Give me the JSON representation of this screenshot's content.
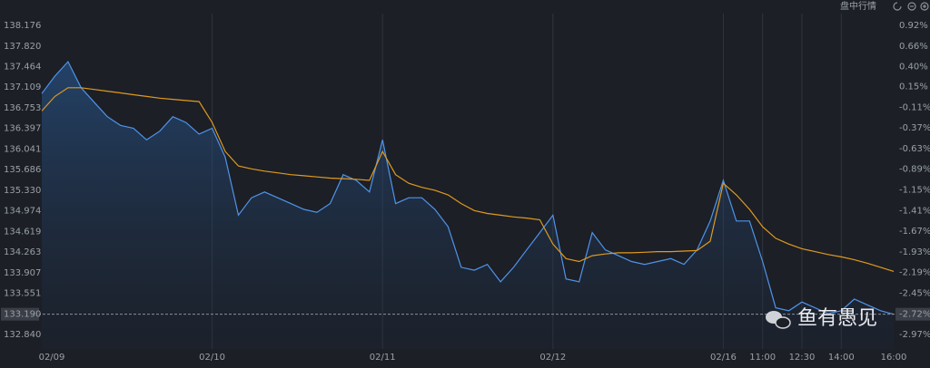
{
  "header": {
    "mode_label": "盘中行情"
  },
  "watermark": "鱼有愚见",
  "chart_data": {
    "type": "line",
    "categories": [
      "02/09",
      null,
      null,
      null,
      null,
      null,
      null,
      null,
      null,
      null,
      null,
      null,
      null,
      "02/10",
      null,
      null,
      null,
      null,
      null,
      null,
      null,
      null,
      null,
      null,
      null,
      null,
      "02/11",
      null,
      null,
      null,
      null,
      null,
      null,
      null,
      null,
      null,
      null,
      null,
      null,
      "02/12",
      null,
      null,
      null,
      null,
      null,
      null,
      null,
      null,
      null,
      null,
      null,
      null,
      "02/16",
      null,
      null,
      "11:00",
      null,
      null,
      "12:30",
      null,
      null,
      "14:00",
      null,
      null,
      null,
      "16:00"
    ],
    "series": [
      {
        "color": "#4f94ea",
        "area": true,
        "values": [
          137.0,
          137.3,
          137.55,
          137.1,
          136.85,
          136.6,
          136.45,
          136.4,
          136.2,
          136.35,
          136.6,
          136.5,
          136.3,
          136.4,
          135.9,
          134.9,
          135.2,
          135.3,
          135.2,
          135.1,
          135.0,
          134.95,
          135.1,
          135.6,
          135.5,
          135.3,
          136.2,
          135.1,
          135.2,
          135.2,
          135.0,
          134.7,
          134.0,
          133.95,
          134.05,
          133.75,
          134.0,
          134.3,
          134.6,
          134.9,
          133.8,
          133.75,
          134.6,
          134.3,
          134.2,
          134.1,
          134.05,
          134.1,
          134.15,
          134.05,
          134.3,
          134.8,
          135.5,
          134.8,
          134.8,
          134.1,
          133.3,
          133.25,
          133.4,
          133.3,
          133.2,
          133.25,
          133.45,
          133.35,
          133.25,
          133.19
        ]
      },
      {
        "color": "#e09a1e",
        "area": false,
        "values": [
          136.7,
          136.95,
          137.1,
          137.1,
          137.07,
          137.04,
          137.01,
          136.98,
          136.95,
          136.92,
          136.9,
          136.88,
          136.86,
          136.5,
          136.0,
          135.75,
          135.7,
          135.66,
          135.63,
          135.6,
          135.58,
          135.56,
          135.54,
          135.53,
          135.52,
          135.5,
          136.0,
          135.6,
          135.45,
          135.38,
          135.33,
          135.25,
          135.1,
          134.98,
          134.93,
          134.9,
          134.87,
          134.85,
          134.82,
          134.4,
          134.15,
          134.1,
          134.2,
          134.23,
          134.25,
          134.25,
          134.26,
          134.27,
          134.27,
          134.28,
          134.29,
          134.45,
          135.45,
          135.25,
          135.0,
          134.7,
          134.5,
          134.4,
          134.32,
          134.27,
          134.22,
          134.18,
          134.13,
          134.07,
          134.0,
          133.93
        ]
      }
    ],
    "ylim": [
      132.59,
      138.38
    ],
    "yticks": [
      138.176,
      {
        "value": 137.82,
        "label": "137.820"
      },
      137.464,
      137.109,
      136.753,
      136.397,
      136.041,
      135.686,
      {
        "value": 135.33,
        "label": "135.330"
      },
      134.974,
      134.619,
      134.263,
      133.907,
      133.551,
      {
        "value": 132.84,
        "label": "132.840"
      }
    ],
    "y2ticks": [
      {
        "value": 0.92,
        "label": "0.92%"
      },
      {
        "value": 0.66,
        "label": "0.66%"
      },
      {
        "value": 0.4,
        "label": "0.40%"
      },
      {
        "value": 0.15,
        "label": "0.15%"
      },
      {
        "value": -0.11,
        "label": "-0.11%"
      },
      {
        "value": -0.37,
        "label": "-0.37%"
      },
      {
        "value": -0.63,
        "label": "-0.63%"
      },
      {
        "value": -0.89,
        "label": "-0.89%"
      },
      {
        "value": -1.15,
        "label": "-1.15%"
      },
      {
        "value": -1.41,
        "label": "-1.41%"
      },
      {
        "value": -1.67,
        "label": "-1.67%"
      },
      {
        "value": -1.93,
        "label": "-1.93%"
      },
      {
        "value": -2.19,
        "label": "-2.19%"
      },
      {
        "value": -2.45,
        "label": "-2.45%"
      },
      {
        "value": -2.97,
        "label": "-2.97%"
      }
    ],
    "last_price": {
      "value": 133.19,
      "label": "133.190",
      "pct_label": "-2.72%"
    },
    "up_color": "#e8413f",
    "down_color": "#1fb25a",
    "grid": true
  }
}
